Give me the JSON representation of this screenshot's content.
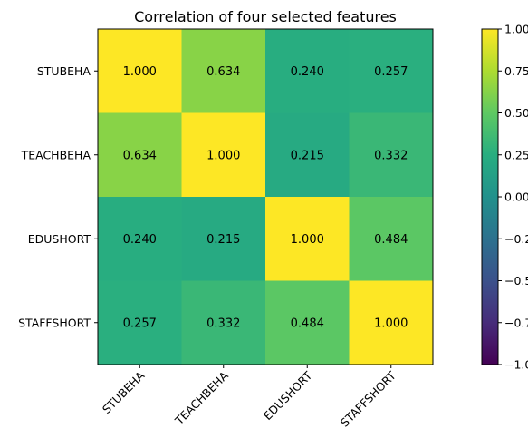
{
  "chart_data": {
    "type": "heatmap",
    "title": "Correlation of four selected features",
    "xlabel": "",
    "ylabel": "",
    "x_categories": [
      "STUBEHA",
      "TEACHBEHA",
      "EDUSHORT",
      "STAFFSHORT"
    ],
    "y_categories": [
      "STUBEHA",
      "TEACHBEHA",
      "EDUSHORT",
      "STAFFSHORT"
    ],
    "values": [
      [
        1.0,
        0.634,
        0.24,
        0.257
      ],
      [
        0.634,
        1.0,
        0.215,
        0.332
      ],
      [
        0.24,
        0.215,
        1.0,
        0.484
      ],
      [
        0.257,
        0.332,
        0.484,
        1.0
      ]
    ],
    "cell_labels": [
      [
        "1.000",
        "0.634",
        "0.240",
        "0.257"
      ],
      [
        "0.634",
        "1.000",
        "0.215",
        "0.332"
      ],
      [
        "0.240",
        "0.215",
        "1.000",
        "0.484"
      ],
      [
        "0.257",
        "0.332",
        "0.484",
        "1.000"
      ]
    ],
    "colorscale": "viridis",
    "vmin": -1.0,
    "vmax": 1.0,
    "colorbar": {
      "ticks": [
        1.0,
        0.75,
        0.5,
        0.25,
        0.0,
        -0.25,
        -0.5,
        -0.75,
        -1.0
      ],
      "tick_labels": [
        "1.00",
        "0.75",
        "0.50",
        "0.25",
        "0.00",
        "−0.25",
        "−0.50",
        "−0.75",
        "−1.00"
      ],
      "placement": "right"
    },
    "grid": false
  }
}
